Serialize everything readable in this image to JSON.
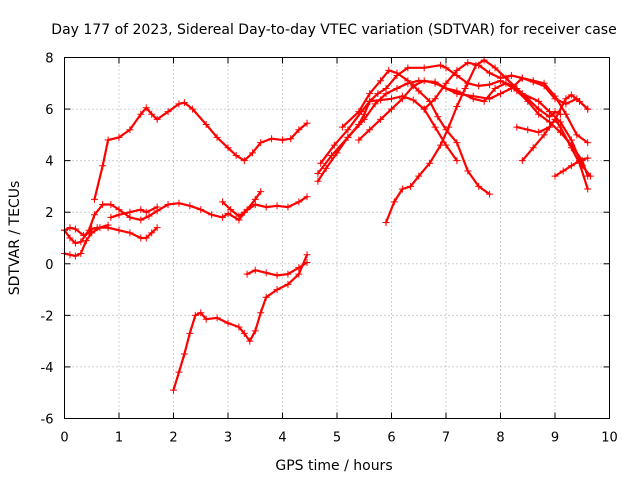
{
  "chart_data": {
    "type": "scatter",
    "title": "Day 177 of 2023, Sidereal Day-to-day VTEC variation (SDTVAR) for receiver case",
    "xlabel": "GPS time / hours",
    "ylabel": "SDTVAR / TECUs",
    "xlim": [
      0,
      10
    ],
    "ylim": [
      -6,
      8
    ],
    "xticks": [
      0,
      1,
      2,
      3,
      4,
      5,
      6,
      7,
      8,
      9,
      10
    ],
    "yticks": [
      -6,
      -4,
      -2,
      0,
      2,
      4,
      6,
      8
    ],
    "grid": true,
    "marker": "plus",
    "color": "#ff0000",
    "series": [
      {
        "points": [
          [
            0.55,
            2.5
          ],
          [
            0.7,
            3.8
          ],
          [
            0.8,
            4.8
          ],
          [
            1.0,
            4.9
          ],
          [
            1.2,
            5.2
          ],
          [
            1.4,
            5.8
          ],
          [
            1.5,
            6.05
          ],
          [
            1.6,
            5.8
          ],
          [
            1.7,
            5.6
          ],
          [
            1.9,
            5.9
          ],
          [
            2.1,
            6.2
          ],
          [
            2.2,
            6.25
          ],
          [
            2.35,
            6.0
          ],
          [
            2.6,
            5.4
          ],
          [
            2.8,
            4.9
          ],
          [
            3.0,
            4.5
          ],
          [
            3.15,
            4.2
          ],
          [
            3.3,
            4.0
          ],
          [
            3.45,
            4.3
          ],
          [
            3.6,
            4.7
          ],
          [
            3.8,
            4.85
          ],
          [
            4.0,
            4.8
          ],
          [
            4.15,
            4.85
          ],
          [
            4.3,
            5.2
          ],
          [
            4.45,
            5.45
          ]
        ]
      },
      {
        "points": [
          [
            0.0,
            1.3
          ],
          [
            0.1,
            1.4
          ],
          [
            0.2,
            1.35
          ],
          [
            0.35,
            1.1
          ],
          [
            0.45,
            1.2
          ],
          [
            0.5,
            1.35
          ],
          [
            0.6,
            1.4
          ],
          [
            0.8,
            1.4
          ],
          [
            1.0,
            1.3
          ],
          [
            1.2,
            1.2
          ],
          [
            1.4,
            1.0
          ],
          [
            1.5,
            1.0
          ],
          [
            1.6,
            1.2
          ],
          [
            1.7,
            1.4
          ]
        ]
      },
      {
        "points": [
          [
            0.0,
            1.3
          ],
          [
            0.1,
            1.0
          ],
          [
            0.2,
            0.8
          ],
          [
            0.3,
            0.85
          ],
          [
            0.45,
            1.3
          ],
          [
            0.55,
            1.9
          ],
          [
            0.7,
            2.3
          ],
          [
            0.85,
            2.3
          ],
          [
            1.0,
            2.1
          ],
          [
            1.2,
            1.8
          ],
          [
            1.4,
            1.7
          ],
          [
            1.55,
            1.85
          ],
          [
            1.7,
            2.05
          ],
          [
            1.9,
            2.3
          ],
          [
            2.1,
            2.35
          ],
          [
            2.3,
            2.25
          ],
          [
            2.5,
            2.1
          ],
          [
            2.7,
            1.9
          ],
          [
            2.9,
            1.8
          ],
          [
            3.0,
            1.95
          ],
          [
            3.2,
            1.7
          ],
          [
            3.35,
            2.1
          ],
          [
            3.5,
            2.5
          ],
          [
            3.6,
            2.8
          ]
        ]
      },
      {
        "points": [
          [
            0.0,
            0.4
          ],
          [
            0.1,
            0.35
          ],
          [
            0.2,
            0.3
          ],
          [
            0.3,
            0.4
          ],
          [
            0.4,
            0.9
          ],
          [
            0.5,
            1.2
          ],
          [
            0.65,
            1.4
          ],
          [
            0.8,
            1.5
          ]
        ]
      },
      {
        "points": [
          [
            0.85,
            1.8
          ],
          [
            1.0,
            1.9
          ],
          [
            1.2,
            2.0
          ],
          [
            1.4,
            2.1
          ],
          [
            1.5,
            2.0
          ],
          [
            1.7,
            2.2
          ]
        ]
      },
      {
        "points": [
          [
            2.0,
            -4.9
          ],
          [
            2.1,
            -4.2
          ],
          [
            2.2,
            -3.5
          ],
          [
            2.3,
            -2.7
          ],
          [
            2.4,
            -2.0
          ],
          [
            2.5,
            -1.9
          ],
          [
            2.6,
            -2.15
          ],
          [
            2.8,
            -2.1
          ],
          [
            3.0,
            -2.3
          ],
          [
            3.2,
            -2.45
          ],
          [
            3.3,
            -2.7
          ],
          [
            3.4,
            -3.0
          ],
          [
            3.5,
            -2.6
          ],
          [
            3.6,
            -1.9
          ],
          [
            3.7,
            -1.3
          ],
          [
            3.9,
            -1.0
          ],
          [
            4.1,
            -0.8
          ],
          [
            4.3,
            -0.4
          ],
          [
            4.45,
            0.35
          ]
        ]
      },
      {
        "points": [
          [
            3.35,
            -0.4
          ],
          [
            3.5,
            -0.25
          ],
          [
            3.7,
            -0.35
          ],
          [
            3.9,
            -0.45
          ],
          [
            4.1,
            -0.4
          ],
          [
            4.3,
            -0.15
          ],
          [
            4.45,
            0.05
          ]
        ]
      },
      {
        "points": [
          [
            2.9,
            2.4
          ],
          [
            3.05,
            2.1
          ],
          [
            3.2,
            1.85
          ],
          [
            3.3,
            2.0
          ],
          [
            3.5,
            2.3
          ],
          [
            3.7,
            2.2
          ],
          [
            3.9,
            2.25
          ],
          [
            4.1,
            2.2
          ],
          [
            4.3,
            2.4
          ],
          [
            4.45,
            2.6
          ]
        ]
      },
      {
        "points": [
          [
            4.65,
            3.2
          ],
          [
            4.8,
            3.7
          ],
          [
            5.0,
            4.3
          ],
          [
            5.2,
            4.9
          ],
          [
            5.4,
            5.4
          ],
          [
            5.5,
            5.8
          ],
          [
            5.6,
            6.3
          ],
          [
            5.75,
            6.6
          ],
          [
            5.9,
            6.8
          ],
          [
            6.1,
            7.3
          ],
          [
            6.3,
            7.6
          ],
          [
            6.6,
            7.6
          ],
          [
            6.9,
            7.7
          ],
          [
            7.0,
            7.6
          ],
          [
            7.2,
            7.3
          ],
          [
            7.4,
            7.0
          ],
          [
            7.6,
            6.9
          ],
          [
            7.8,
            6.95
          ],
          [
            8.0,
            7.1
          ],
          [
            8.2,
            6.9
          ],
          [
            8.4,
            6.6
          ],
          [
            8.7,
            6.3
          ],
          [
            8.9,
            5.9
          ],
          [
            9.1,
            5.5
          ],
          [
            9.3,
            4.8
          ],
          [
            9.5,
            3.8
          ],
          [
            9.65,
            3.4
          ]
        ]
      },
      {
        "points": [
          [
            4.65,
            3.5
          ],
          [
            4.9,
            4.2
          ],
          [
            5.2,
            4.9
          ],
          [
            5.5,
            5.6
          ],
          [
            5.7,
            6.2
          ],
          [
            5.9,
            6.6
          ],
          [
            6.1,
            6.8
          ],
          [
            6.3,
            7.0
          ],
          [
            6.5,
            7.1
          ],
          [
            6.8,
            7.05
          ],
          [
            7.0,
            6.8
          ],
          [
            7.2,
            6.6
          ],
          [
            7.5,
            6.5
          ],
          [
            7.8,
            6.4
          ],
          [
            8.0,
            6.6
          ],
          [
            8.2,
            6.8
          ],
          [
            8.4,
            7.2
          ],
          [
            8.6,
            7.1
          ],
          [
            8.8,
            7.0
          ],
          [
            9.0,
            6.5
          ],
          [
            9.2,
            5.8
          ],
          [
            9.4,
            5.0
          ],
          [
            9.6,
            4.7
          ]
        ]
      },
      {
        "points": [
          [
            4.7,
            3.9
          ],
          [
            4.95,
            4.6
          ],
          [
            5.2,
            5.2
          ],
          [
            5.45,
            5.9
          ],
          [
            5.6,
            6.3
          ],
          [
            5.8,
            6.35
          ],
          [
            6.0,
            6.4
          ],
          [
            6.2,
            6.5
          ],
          [
            6.4,
            6.35
          ],
          [
            6.6,
            6.0
          ],
          [
            6.8,
            5.3
          ],
          [
            7.0,
            4.6
          ],
          [
            7.2,
            4.0
          ]
        ]
      },
      {
        "points": [
          [
            5.1,
            5.3
          ],
          [
            5.4,
            5.9
          ],
          [
            5.6,
            6.6
          ],
          [
            5.8,
            7.1
          ],
          [
            5.95,
            7.5
          ],
          [
            6.1,
            7.4
          ],
          [
            6.3,
            7.1
          ],
          [
            6.5,
            6.7
          ],
          [
            6.7,
            6.3
          ],
          [
            6.85,
            5.7
          ],
          [
            7.0,
            5.2
          ],
          [
            7.2,
            4.7
          ],
          [
            7.4,
            3.6
          ],
          [
            7.6,
            3.0
          ],
          [
            7.8,
            2.7
          ]
        ]
      },
      {
        "points": [
          [
            5.4,
            4.8
          ],
          [
            5.6,
            5.2
          ],
          [
            5.8,
            5.6
          ],
          [
            6.0,
            6.0
          ],
          [
            6.2,
            6.4
          ],
          [
            6.4,
            6.9
          ],
          [
            6.6,
            7.1
          ],
          [
            6.8,
            7.0
          ],
          [
            7.0,
            6.8
          ],
          [
            7.2,
            6.7
          ],
          [
            7.5,
            6.4
          ],
          [
            7.7,
            6.3
          ],
          [
            7.9,
            6.8
          ],
          [
            8.1,
            7.0
          ],
          [
            8.3,
            6.7
          ],
          [
            8.5,
            6.3
          ],
          [
            8.7,
            5.8
          ],
          [
            8.9,
            5.5
          ],
          [
            9.1,
            5.1
          ],
          [
            9.3,
            4.6
          ],
          [
            9.5,
            4.0
          ],
          [
            9.6,
            3.4
          ]
        ]
      },
      {
        "points": [
          [
            5.9,
            1.6
          ],
          [
            6.05,
            2.4
          ],
          [
            6.2,
            2.9
          ],
          [
            6.35,
            3.0
          ],
          [
            6.5,
            3.4
          ],
          [
            6.7,
            3.9
          ],
          [
            6.9,
            4.6
          ],
          [
            7.05,
            5.3
          ],
          [
            7.2,
            6.1
          ],
          [
            7.35,
            6.8
          ],
          [
            7.55,
            7.7
          ],
          [
            7.7,
            7.9
          ],
          [
            7.9,
            7.6
          ],
          [
            8.1,
            7.2
          ],
          [
            8.3,
            6.8
          ],
          [
            8.5,
            6.4
          ],
          [
            8.7,
            6.0
          ],
          [
            8.9,
            5.7
          ],
          [
            9.0,
            5.9
          ],
          [
            9.1,
            5.8
          ]
        ]
      },
      {
        "points": [
          [
            6.6,
            6.0
          ],
          [
            6.8,
            6.4
          ],
          [
            7.0,
            7.0
          ],
          [
            7.2,
            7.5
          ],
          [
            7.4,
            7.8
          ],
          [
            7.6,
            7.7
          ],
          [
            7.8,
            7.4
          ],
          [
            8.0,
            7.2
          ],
          [
            8.2,
            7.3
          ],
          [
            8.4,
            7.2
          ],
          [
            8.6,
            7.05
          ],
          [
            8.8,
            6.9
          ],
          [
            9.0,
            6.4
          ],
          [
            9.2,
            6.2
          ],
          [
            9.4,
            6.4
          ],
          [
            9.6,
            6.0
          ]
        ]
      },
      {
        "points": [
          [
            8.4,
            4.0
          ],
          [
            8.6,
            4.5
          ],
          [
            8.8,
            5.0
          ],
          [
            9.0,
            5.6
          ],
          [
            9.2,
            6.4
          ],
          [
            9.3,
            6.55
          ],
          [
            9.45,
            6.3
          ],
          [
            9.6,
            6.0
          ]
        ]
      },
      {
        "points": [
          [
            8.3,
            5.3
          ],
          [
            8.5,
            5.2
          ],
          [
            8.7,
            5.1
          ],
          [
            8.9,
            5.3
          ],
          [
            9.0,
            5.6
          ],
          [
            9.1,
            5.3
          ],
          [
            9.3,
            4.5
          ],
          [
            9.45,
            3.9
          ],
          [
            9.6,
            2.9
          ]
        ]
      },
      {
        "points": [
          [
            9.0,
            3.4
          ],
          [
            9.15,
            3.6
          ],
          [
            9.3,
            3.8
          ],
          [
            9.45,
            4.0
          ],
          [
            9.6,
            4.1
          ]
        ]
      }
    ]
  }
}
